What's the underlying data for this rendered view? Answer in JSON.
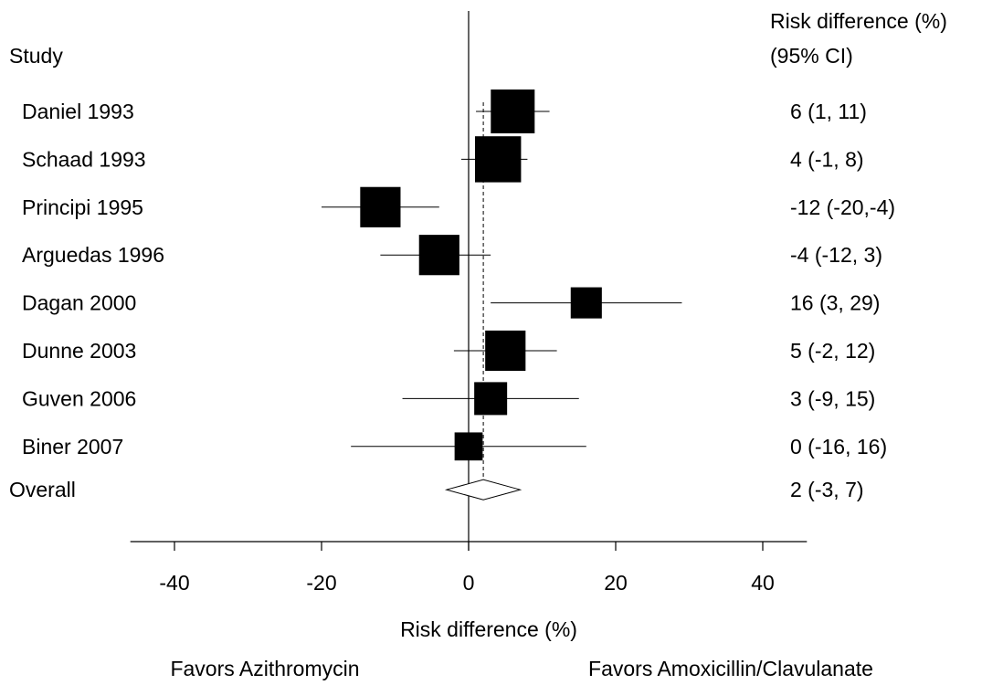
{
  "chart_data": {
    "type": "forest",
    "col_headers": {
      "study": "Study",
      "effect_line1": "Risk difference (%)",
      "effect_line2": "(95% CI)"
    },
    "studies": [
      {
        "name": "Daniel 1993",
        "rd": 6,
        "lo": 1,
        "hi": 11,
        "weight": 1.0,
        "ci_text": "6 (1, 11)"
      },
      {
        "name": "Schaad 1993",
        "rd": 4,
        "lo": -1,
        "hi": 8,
        "weight": 1.05,
        "ci_text": "4 (-1, 8)"
      },
      {
        "name": "Principi 1995",
        "rd": -12,
        "lo": -20,
        "hi": -4,
        "weight": 0.92,
        "ci_text": "-12 (-20,-4)"
      },
      {
        "name": "Arguedas 1996",
        "rd": -4,
        "lo": -12,
        "hi": 3,
        "weight": 0.92,
        "ci_text": "-4 (-12, 3)"
      },
      {
        "name": "Dagan 2000",
        "rd": 16,
        "lo": 3,
        "hi": 29,
        "weight": 0.71,
        "ci_text": "16 (3, 29)"
      },
      {
        "name": "Dunne 2003",
        "rd": 5,
        "lo": -2,
        "hi": 12,
        "weight": 0.92,
        "ci_text": "5 (-2, 12)"
      },
      {
        "name": "Guven 2006",
        "rd": 3,
        "lo": -9,
        "hi": 15,
        "weight": 0.75,
        "ci_text": "3 (-9, 15)"
      },
      {
        "name": "Biner 2007",
        "rd": 0,
        "lo": -16,
        "hi": 16,
        "weight": 0.64,
        "ci_text": "0 (-16, 16)"
      }
    ],
    "overall": {
      "name": "Overall",
      "rd": 2,
      "lo": -3,
      "hi": 7,
      "ci_text": "2 (-3, 7)"
    },
    "null_value": 0,
    "xlim": [
      -46,
      46
    ],
    "xticks": [
      -40,
      -20,
      0,
      20,
      40
    ],
    "xlabel": "Risk difference (%)",
    "favors_left": "Favors Azithromycin",
    "favors_right": "Favors Amoxicillin/Clavulanate"
  }
}
